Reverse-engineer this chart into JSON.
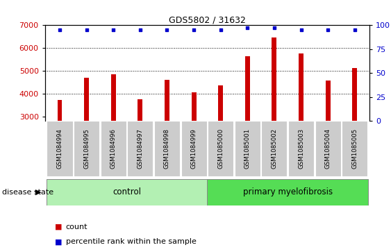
{
  "title": "GDS5802 / 31632",
  "samples": [
    "GSM1084994",
    "GSM1084995",
    "GSM1084996",
    "GSM1084997",
    "GSM1084998",
    "GSM1084999",
    "GSM1085000",
    "GSM1085001",
    "GSM1085002",
    "GSM1085003",
    "GSM1085004",
    "GSM1085005"
  ],
  "counts": [
    3720,
    4680,
    4840,
    3740,
    4600,
    4060,
    4370,
    5650,
    6450,
    5750,
    4560,
    5130
  ],
  "percentile_ranks": [
    95,
    95,
    95,
    95,
    95,
    95,
    95,
    97,
    97,
    95,
    95,
    95
  ],
  "bar_color": "#cc0000",
  "dot_color": "#0000cc",
  "ylim_left": [
    2800,
    7000
  ],
  "ylim_right": [
    0,
    100
  ],
  "yticks_left": [
    3000,
    4000,
    5000,
    6000,
    7000
  ],
  "yticks_right": [
    0,
    25,
    50,
    75,
    100
  ],
  "control_label": "control",
  "disease_label": "primary myelofibrosis",
  "disease_state_label": "disease state",
  "control_bg": "#b3f0b3",
  "disease_bg": "#55dd55",
  "tick_bg": "#cccccc",
  "legend_count_label": "count",
  "legend_pct_label": "percentile rank within the sample",
  "n_control": 6,
  "n_disease": 6,
  "bar_width": 0.18
}
